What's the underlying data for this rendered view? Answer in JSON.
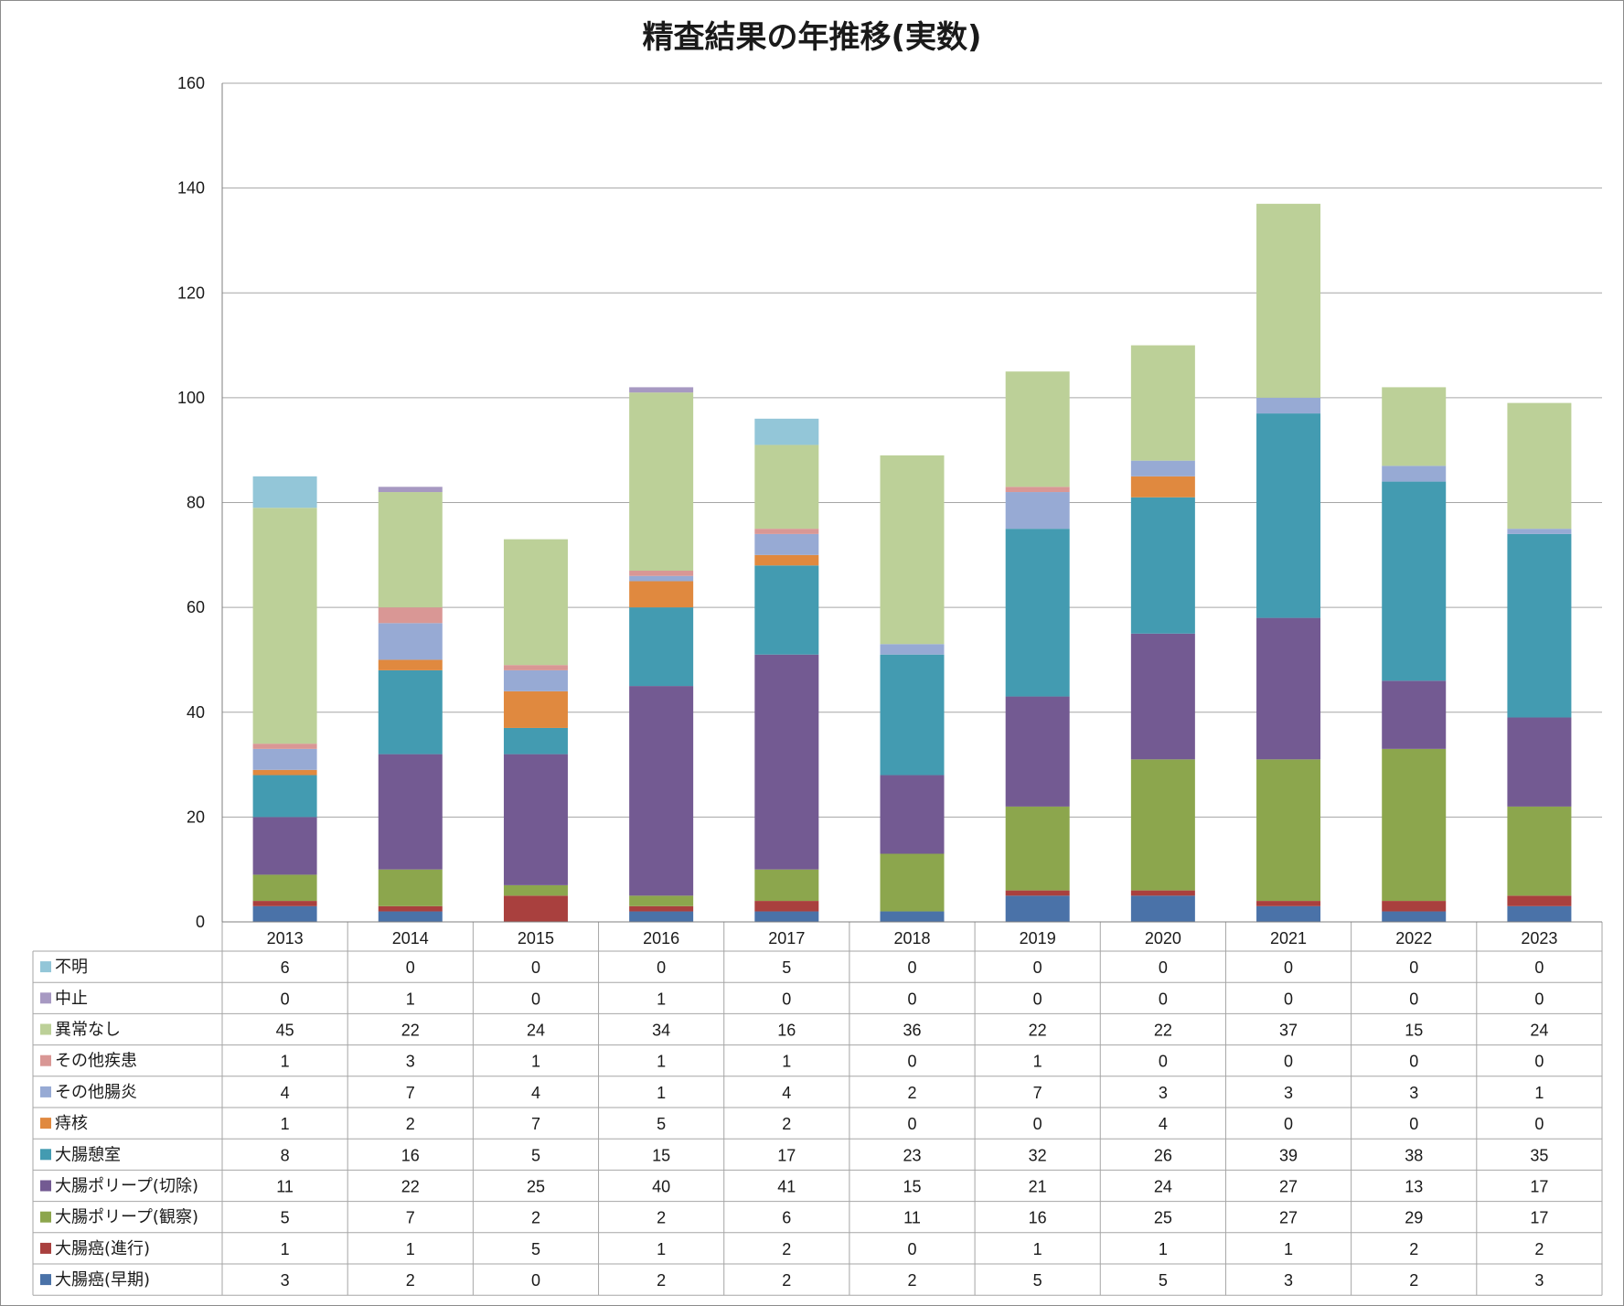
{
  "chart_data": {
    "type": "bar",
    "stacked": true,
    "title": "精査結果の年推移(実数)",
    "xlabel": "",
    "ylabel": "",
    "ylim": [
      0,
      160
    ],
    "yticks": [
      0,
      20,
      40,
      60,
      80,
      100,
      120,
      140,
      160
    ],
    "grid": true,
    "legend": "data-table-left",
    "categories": [
      "2013",
      "2014",
      "2015",
      "2016",
      "2017",
      "2018",
      "2019",
      "2020",
      "2021",
      "2022",
      "2023"
    ],
    "series": [
      {
        "name": "大腸癌(早期)",
        "color": "#4a72a8",
        "values": [
          3,
          2,
          0,
          2,
          2,
          2,
          5,
          5,
          3,
          2,
          3
        ]
      },
      {
        "name": "大腸癌(進行)",
        "color": "#a9403e",
        "values": [
          1,
          1,
          5,
          1,
          2,
          0,
          1,
          1,
          1,
          2,
          2
        ]
      },
      {
        "name": "大腸ポリープ(観察)",
        "color": "#8ca64d",
        "values": [
          5,
          7,
          2,
          2,
          6,
          11,
          16,
          25,
          27,
          29,
          17
        ]
      },
      {
        "name": "大腸ポリープ(切除)",
        "color": "#735a92",
        "values": [
          11,
          22,
          25,
          40,
          41,
          15,
          21,
          24,
          27,
          13,
          17
        ]
      },
      {
        "name": "大腸憩室",
        "color": "#439bb1",
        "values": [
          8,
          16,
          5,
          15,
          17,
          23,
          32,
          26,
          39,
          38,
          35
        ]
      },
      {
        "name": "痔核",
        "color": "#e0893f",
        "values": [
          1,
          2,
          7,
          5,
          2,
          0,
          0,
          4,
          0,
          0,
          0
        ]
      },
      {
        "name": "その他腸炎",
        "color": "#97aad4",
        "values": [
          4,
          7,
          4,
          1,
          4,
          2,
          7,
          3,
          3,
          3,
          1
        ]
      },
      {
        "name": "その他疾患",
        "color": "#d99795",
        "values": [
          1,
          3,
          1,
          1,
          1,
          0,
          1,
          0,
          0,
          0,
          0
        ]
      },
      {
        "name": "異常なし",
        "color": "#bcd098",
        "values": [
          45,
          22,
          24,
          34,
          16,
          36,
          22,
          22,
          37,
          15,
          24
        ]
      },
      {
        "name": "中止",
        "color": "#a799c2",
        "values": [
          0,
          1,
          0,
          1,
          0,
          0,
          0,
          0,
          0,
          0,
          0
        ]
      },
      {
        "name": "不明",
        "color": "#93c6d8",
        "values": [
          6,
          0,
          0,
          0,
          5,
          0,
          0,
          0,
          0,
          0,
          0
        ]
      }
    ]
  }
}
